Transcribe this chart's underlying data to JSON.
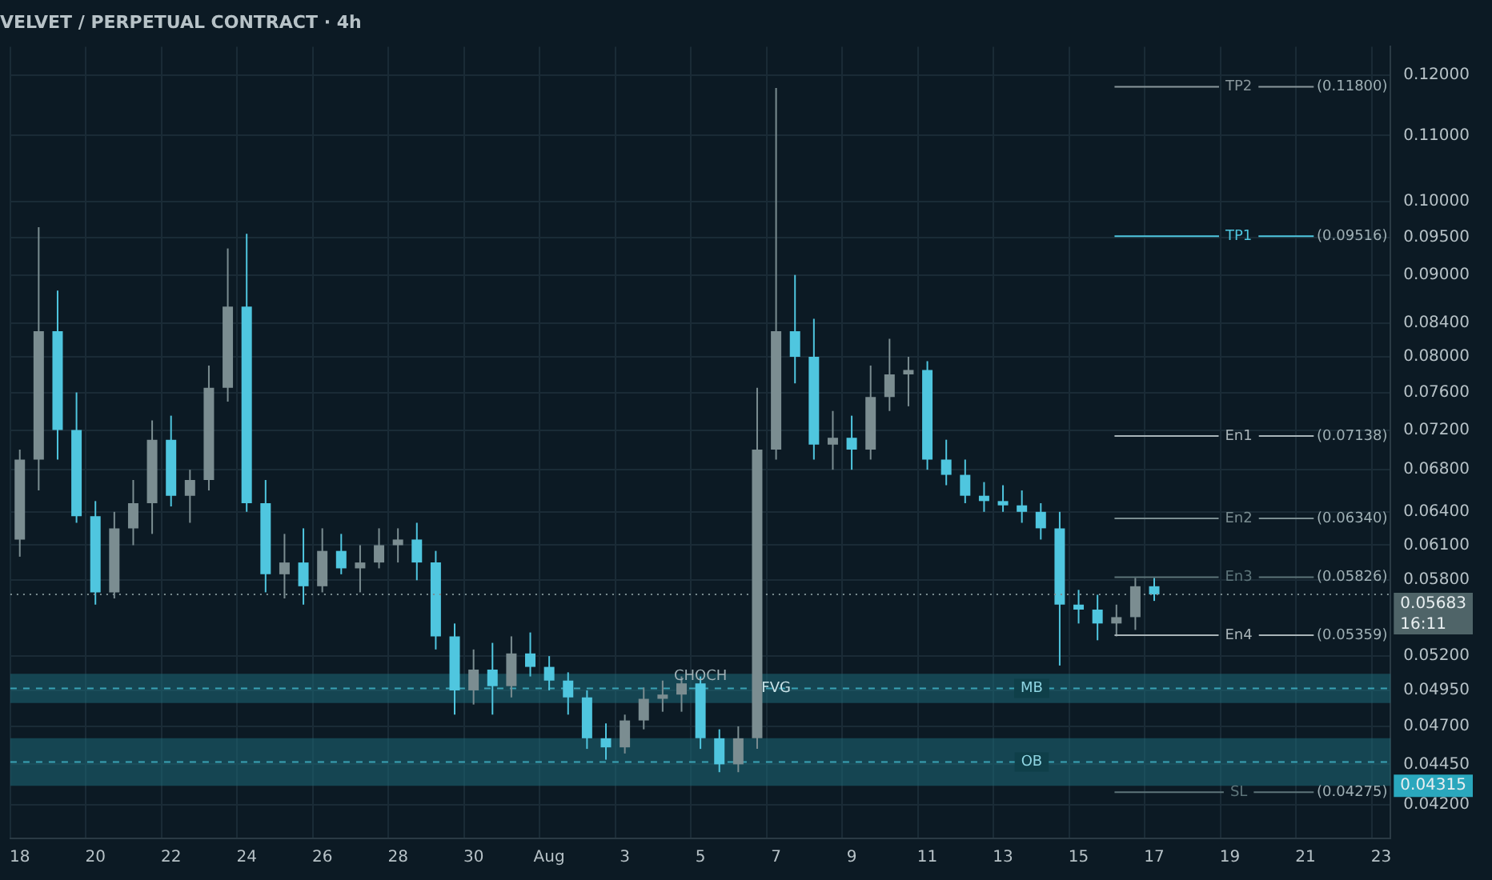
{
  "chart_data": {
    "type": "candlestick",
    "title": "VELVET / PERPETUAL CONTRACT · 4h",
    "categories": [
      "18",
      null,
      null,
      null,
      "20",
      null,
      null,
      null,
      "22",
      null,
      null,
      null,
      "24",
      null,
      null,
      null,
      "26",
      null,
      null,
      null,
      "28",
      null,
      null,
      null,
      "30",
      null,
      null,
      null,
      "Aug",
      null,
      null,
      null,
      "3",
      null,
      null,
      null,
      "5",
      null,
      null,
      null,
      "7",
      null,
      null,
      null,
      "9",
      null,
      null,
      null,
      "11",
      null,
      null,
      null,
      "13",
      null,
      null,
      null,
      "15",
      null,
      null,
      null,
      "17",
      null,
      null,
      null,
      "19",
      null,
      null,
      null,
      "21",
      null,
      null,
      null,
      "23"
    ],
    "ohlc": [
      [
        0.0615,
        0.07,
        0.06,
        0.069
      ],
      [
        0.069,
        0.0964,
        0.066,
        0.083
      ],
      [
        0.083,
        0.088,
        0.069,
        0.072
      ],
      [
        0.072,
        0.076,
        0.063,
        0.0636
      ],
      [
        0.0636,
        0.065,
        0.056,
        0.057
      ],
      [
        0.057,
        0.064,
        0.0565,
        0.0625
      ],
      [
        0.0625,
        0.067,
        0.061,
        0.0648
      ],
      [
        0.0648,
        0.073,
        0.062,
        0.071
      ],
      [
        0.071,
        0.0735,
        0.0645,
        0.0655
      ],
      [
        0.0655,
        0.068,
        0.063,
        0.067
      ],
      [
        0.067,
        0.079,
        0.066,
        0.0765
      ],
      [
        0.0765,
        0.0935,
        0.075,
        0.086
      ],
      [
        0.086,
        0.0955,
        0.064,
        0.0648
      ],
      [
        0.0648,
        0.067,
        0.057,
        0.0585
      ],
      [
        0.0585,
        0.062,
        0.0565,
        0.0595
      ],
      [
        0.0595,
        0.0625,
        0.056,
        0.0575
      ],
      [
        0.0575,
        0.0625,
        0.057,
        0.0605
      ],
      [
        0.0605,
        0.062,
        0.0585,
        0.059
      ],
      [
        0.059,
        0.061,
        0.057,
        0.0595
      ],
      [
        0.0595,
        0.0625,
        0.059,
        0.061
      ],
      [
        0.061,
        0.0625,
        0.0595,
        0.0615
      ],
      [
        0.0615,
        0.063,
        0.058,
        0.0595
      ],
      [
        0.0595,
        0.0605,
        0.0525,
        0.0535
      ],
      [
        0.0535,
        0.0545,
        0.0478,
        0.0495
      ],
      [
        0.0495,
        0.0525,
        0.0485,
        0.051
      ],
      [
        0.051,
        0.053,
        0.0478,
        0.0498
      ],
      [
        0.0498,
        0.0535,
        0.049,
        0.0522
      ],
      [
        0.0522,
        0.0538,
        0.0505,
        0.0512
      ],
      [
        0.0512,
        0.052,
        0.0495,
        0.0502
      ],
      [
        0.0502,
        0.0508,
        0.0478,
        0.049
      ],
      [
        0.049,
        0.0495,
        0.0455,
        0.0462
      ],
      [
        0.0462,
        0.0472,
        0.0448,
        0.0456
      ],
      [
        0.0456,
        0.0478,
        0.0452,
        0.0474
      ],
      [
        0.0474,
        0.0497,
        0.0468,
        0.0489
      ],
      [
        0.0489,
        0.0502,
        0.048,
        0.0492
      ],
      [
        0.0492,
        0.0505,
        0.048,
        0.05
      ],
      [
        0.05,
        0.0505,
        0.0455,
        0.0462
      ],
      [
        0.0462,
        0.0468,
        0.044,
        0.0445
      ],
      [
        0.0445,
        0.047,
        0.044,
        0.0462
      ],
      [
        0.0462,
        0.0765,
        0.0455,
        0.07
      ],
      [
        0.07,
        0.1178,
        0.069,
        0.083
      ],
      [
        0.083,
        0.09,
        0.077,
        0.08
      ],
      [
        0.08,
        0.0845,
        0.069,
        0.0705
      ],
      [
        0.0705,
        0.074,
        0.068,
        0.0712
      ],
      [
        0.0712,
        0.0735,
        0.068,
        0.07
      ],
      [
        0.07,
        0.079,
        0.069,
        0.0755
      ],
      [
        0.0755,
        0.0821,
        0.074,
        0.078
      ],
      [
        0.078,
        0.08,
        0.0745,
        0.0785
      ],
      [
        0.0785,
        0.0795,
        0.068,
        0.069
      ],
      [
        0.069,
        0.071,
        0.0665,
        0.0675
      ],
      [
        0.0675,
        0.069,
        0.0648,
        0.0655
      ],
      [
        0.0655,
        0.0668,
        0.064,
        0.065
      ],
      [
        0.065,
        0.0665,
        0.064,
        0.0646
      ],
      [
        0.0646,
        0.066,
        0.063,
        0.064
      ],
      [
        0.064,
        0.0648,
        0.0615,
        0.0625
      ],
      [
        0.0625,
        0.064,
        0.0513,
        0.056
      ],
      [
        0.056,
        0.0572,
        0.0545,
        0.0556
      ],
      [
        0.0556,
        0.0568,
        0.0532,
        0.0545
      ],
      [
        0.0545,
        0.056,
        0.0535,
        0.055
      ],
      [
        0.055,
        0.0582,
        0.054,
        0.0575
      ],
      [
        0.0575,
        0.0582,
        0.0563,
        0.05683
      ],
      null,
      null,
      null,
      null,
      null,
      null,
      null,
      null,
      null,
      null,
      null,
      null
    ],
    "colors": [
      "#7b8d91",
      "#7b8d91",
      "#4fc6df",
      "#4fc6df",
      "#4fc6df",
      "#7b8d91",
      "#7b8d91",
      "#7b8d91",
      "#4fc6df",
      "#7b8d91",
      "#7b8d91",
      "#7b8d91",
      "#4fc6df",
      "#4fc6df",
      "#7b8d91",
      "#4fc6df",
      "#7b8d91",
      "#4fc6df",
      "#7b8d91",
      "#7b8d91",
      "#7b8d91",
      "#4fc6df",
      "#4fc6df",
      "#4fc6df",
      "#7b8d91",
      "#4fc6df",
      "#7b8d91",
      "#4fc6df",
      "#4fc6df",
      "#4fc6df",
      "#4fc6df",
      "#4fc6df",
      "#7b8d91",
      "#7b8d91",
      "#7b8d91",
      "#7b8d91",
      "#4fc6df",
      "#4fc6df",
      "#7b8d91",
      "#7b8d91",
      "#7b8d91",
      "#4fc6df",
      "#4fc6df",
      "#7b8d91",
      "#4fc6df",
      "#7b8d91",
      "#7b8d91",
      "#7b8d91",
      "#4fc6df",
      "#4fc6df",
      "#4fc6df",
      "#4fc6df",
      "#4fc6df",
      "#4fc6df",
      "#4fc6df",
      "#4fc6df",
      "#4fc6df",
      "#4fc6df",
      "#7b8d91",
      "#7b8d91",
      "#4fc6df",
      null,
      null,
      null,
      null,
      null,
      null,
      null,
      null,
      null,
      null,
      null,
      null
    ],
    "log": true,
    "grid": true,
    "ylim": [
      0.04,
      0.125
    ],
    "yticks": [
      {
        "value": 0.12,
        "label": "0.12000"
      },
      {
        "value": 0.11,
        "label": "0.11000"
      },
      {
        "value": 0.1,
        "label": "0.10000"
      },
      {
        "value": 0.095,
        "label": "0.09500"
      },
      {
        "value": 0.09,
        "label": "0.09000"
      },
      {
        "value": 0.084,
        "label": "0.08400"
      },
      {
        "value": 0.08,
        "label": "0.08000"
      },
      {
        "value": 0.076,
        "label": "0.07600"
      },
      {
        "value": 0.072,
        "label": "0.07200"
      },
      {
        "value": 0.068,
        "label": "0.06800"
      },
      {
        "value": 0.064,
        "label": "0.06400"
      },
      {
        "value": 0.061,
        "label": "0.06100"
      },
      {
        "value": 0.058,
        "label": "0.05800"
      },
      {
        "value": 0.052,
        "label": "0.05200"
      },
      {
        "value": 0.0495,
        "label": "0.04950"
      },
      {
        "value": 0.047,
        "label": "0.04700"
      },
      {
        "value": 0.0445,
        "label": "0.04450"
      },
      {
        "value": 0.042,
        "label": "0.04200"
      }
    ],
    "ref_lines": [
      {
        "axis": "y",
        "value": 0.118,
        "label": "TP2",
        "color": "#8a979c"
      },
      {
        "axis": "y",
        "value": 0.09516,
        "label": "TP1",
        "color": "#4fc6df"
      },
      {
        "axis": "y",
        "value": 0.07138,
        "label": "En1",
        "color": "#a9b4b8"
      },
      {
        "axis": "y",
        "value": 0.0634,
        "label": "En2",
        "color": "#7b8d91"
      },
      {
        "axis": "y",
        "value": 0.05826,
        "label": "En3",
        "color": "#5d7479"
      },
      {
        "axis": "y",
        "value": 0.05359,
        "label": "En4",
        "color": "#a9b4b8"
      },
      {
        "axis": "y",
        "value": 0.04275,
        "label": "SL",
        "color": "#5d7479"
      },
      {
        "axis": "y",
        "value": 0.05683,
        "label": "0.05683",
        "color": "#7b8d91",
        "line_style": "dotted"
      }
    ],
    "bands": [
      {
        "axis": "y",
        "from": 0.0486,
        "to": 0.0507,
        "label": "MB",
        "color": "#1d6a78"
      },
      {
        "axis": "y",
        "from": 0.04315,
        "to": 0.0462,
        "label": "OB",
        "color": "#1d6a78"
      }
    ],
    "annotations": [
      {
        "text": "(0.11800)",
        "x": "21",
        "y": 0.118
      },
      {
        "text": "(0.09516)",
        "x": "21",
        "y": 0.09516
      },
      {
        "text": "(0.07138)",
        "x": "21",
        "y": 0.07138
      },
      {
        "text": "(0.06340)",
        "x": "21",
        "y": 0.0634
      },
      {
        "text": "(0.05826)",
        "x": "21",
        "y": 0.05826
      },
      {
        "text": "(0.05359)",
        "x": "21",
        "y": 0.05359
      },
      {
        "text": "(0.04275)",
        "x": "21",
        "y": 0.04275
      },
      {
        "text": "CHOCH",
        "x": "5",
        "y": 0.0505
      },
      "FVG",
      "0.04315",
      "16:11"
    ]
  }
}
